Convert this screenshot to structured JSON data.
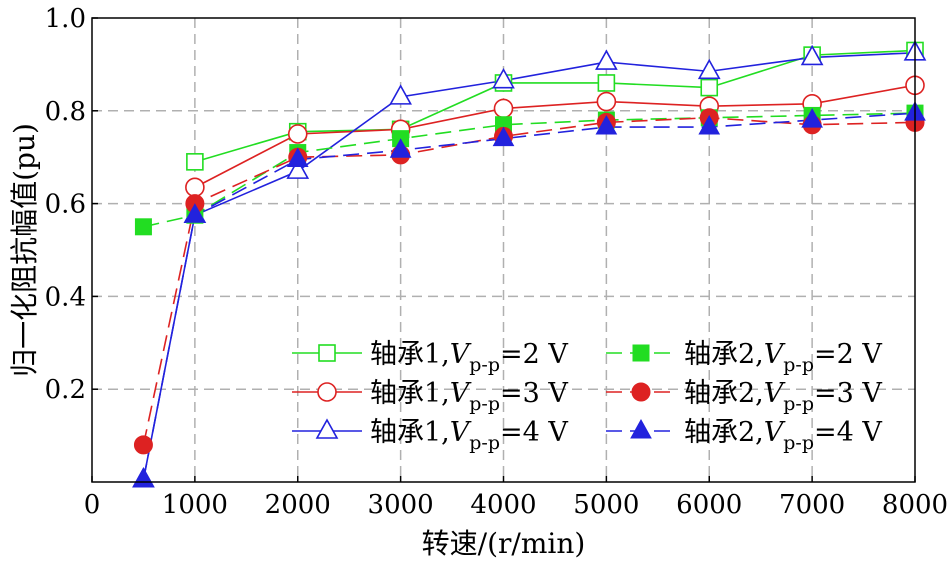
{
  "chart_data": {
    "type": "line",
    "xlabel": "转速/(r/min)",
    "ylabel": "归一化阻抗幅值(pu)",
    "xlim": [
      0,
      8000
    ],
    "ylim": [
      0,
      1.0
    ],
    "xticks": [
      "0",
      "1000",
      "2000",
      "3000",
      "4000",
      "5000",
      "6000",
      "7000",
      "8000"
    ],
    "yticks": [
      "0.2",
      "0.4",
      "0.6",
      "0.8",
      "1.0"
    ],
    "grid": true,
    "legend_position": "bottom-right",
    "series": [
      {
        "name": "轴承1,Vp-p=2 V",
        "label_prefix": "轴承1,",
        "label_var": "V",
        "label_sub": "p-p",
        "label_suffix": "=2 V",
        "color": "#22dd22",
        "marker": "square",
        "filled": false,
        "dashed": false,
        "x": [
          1000,
          2000,
          3000,
          4000,
          5000,
          6000,
          7000,
          8000
        ],
        "y": [
          0.69,
          0.755,
          0.76,
          0.86,
          0.86,
          0.85,
          0.92,
          0.93
        ]
      },
      {
        "name": "轴承1,Vp-p=3 V",
        "label_prefix": "轴承1,",
        "label_var": "V",
        "label_sub": "p-p",
        "label_suffix": "=3 V",
        "color": "#dd2222",
        "marker": "circle",
        "filled": false,
        "dashed": false,
        "x": [
          1000,
          2000,
          3000,
          4000,
          5000,
          6000,
          7000,
          8000
        ],
        "y": [
          0.635,
          0.75,
          0.76,
          0.805,
          0.82,
          0.81,
          0.815,
          0.855
        ]
      },
      {
        "name": "轴承1,Vp-p=4 V",
        "label_prefix": "轴承1,",
        "label_var": "V",
        "label_sub": "p-p",
        "label_suffix": "=4 V",
        "color": "#2222dd",
        "marker": "triangle",
        "filled": false,
        "dashed": false,
        "x": [
          500,
          1000,
          2000,
          3000,
          4000,
          5000,
          6000,
          7000,
          8000
        ],
        "y": [
          0.005,
          0.575,
          0.67,
          0.83,
          0.865,
          0.905,
          0.885,
          0.915,
          0.925
        ]
      },
      {
        "name": "轴承2,Vp-p=2 V",
        "label_prefix": "轴承2,",
        "label_var": "V",
        "label_sub": "p-p",
        "label_suffix": "=2 V",
        "color": "#22dd22",
        "marker": "square",
        "filled": true,
        "dashed": true,
        "x": [
          500,
          1000,
          2000,
          3000,
          4000,
          5000,
          6000,
          7000,
          8000
        ],
        "y": [
          0.55,
          0.575,
          0.71,
          0.74,
          0.77,
          0.78,
          0.785,
          0.79,
          0.795
        ]
      },
      {
        "name": "轴承2,Vp-p=3 V",
        "label_prefix": "轴承2,",
        "label_var": "V",
        "label_sub": "p-p",
        "label_suffix": "=3 V",
        "color": "#dd2222",
        "marker": "circle",
        "filled": true,
        "dashed": true,
        "x": [
          500,
          1000,
          2000,
          3000,
          4000,
          5000,
          6000,
          7000,
          8000
        ],
        "y": [
          0.08,
          0.6,
          0.7,
          0.705,
          0.745,
          0.775,
          0.785,
          0.77,
          0.775
        ]
      },
      {
        "name": "轴承2,Vp-p=4 V",
        "label_prefix": "轴承2,",
        "label_var": "V",
        "label_sub": "p-p",
        "label_suffix": "=4 V",
        "color": "#2222dd",
        "marker": "triangle",
        "filled": true,
        "dashed": true,
        "x": [
          500,
          1000,
          2000,
          3000,
          4000,
          5000,
          6000,
          7000,
          8000
        ],
        "y": [
          0.005,
          0.575,
          0.695,
          0.715,
          0.74,
          0.765,
          0.765,
          0.78,
          0.795
        ]
      }
    ]
  }
}
